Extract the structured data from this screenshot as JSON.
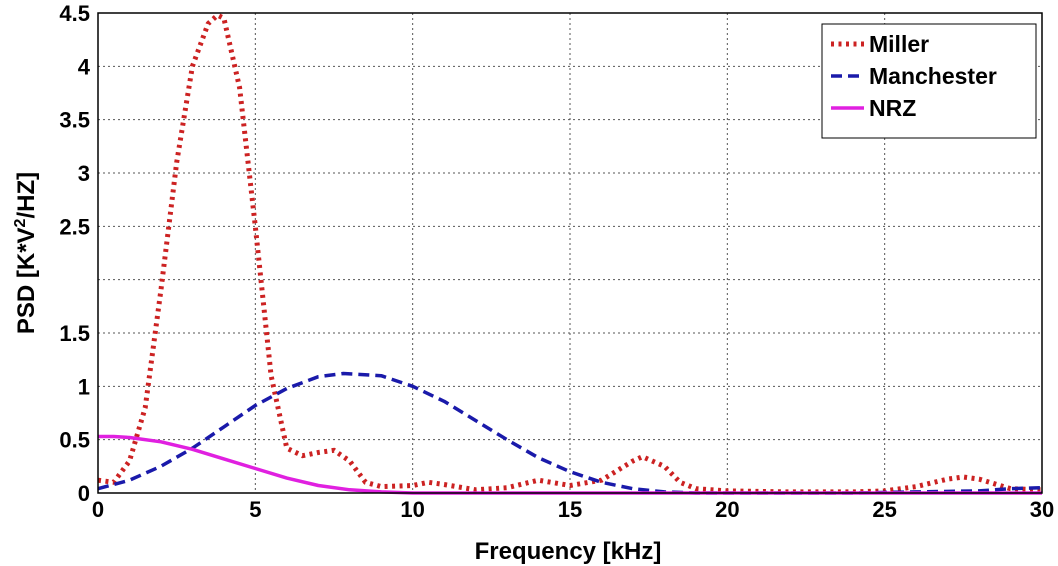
{
  "chart_data": {
    "type": "line",
    "title": "",
    "xlabel": "Frequency [kHz]",
    "ylabel": {
      "pre": "PSD [K*V",
      "sup": "2",
      "post": "/HZ]"
    },
    "xlim": [
      0,
      30
    ],
    "ylim": [
      0,
      4.5
    ],
    "x_ticks": [
      0,
      5,
      10,
      15,
      20,
      25,
      30
    ],
    "x_tick_labels": [
      "0",
      "5",
      "10",
      "15",
      "20",
      "25",
      "30"
    ],
    "y_ticks": [
      0,
      0.5,
      1,
      1.5,
      2,
      2.5,
      3,
      3.5,
      4,
      4.5
    ],
    "y_tick_labels": [
      "0",
      "0.5",
      "1",
      "1.5",
      "",
      "2.5",
      "3",
      "3.5",
      "4",
      "4.5"
    ],
    "grid": true,
    "legend_position": "top-right",
    "series": [
      {
        "name": "Miller",
        "color": "#cc2222",
        "style": "dotted",
        "x": [
          0,
          0.5,
          1,
          1.5,
          2,
          2.5,
          3,
          3.5,
          3.8,
          4,
          4.5,
          5,
          5.5,
          6,
          6.5,
          7,
          7.5,
          8,
          8.5,
          9,
          10,
          10.5,
          11,
          12,
          13,
          14,
          15,
          16,
          17,
          17.3,
          18,
          18.5,
          19,
          20,
          22,
          24,
          25,
          26,
          27,
          27.5,
          28,
          29,
          30
        ],
        "y": [
          0.12,
          0.1,
          0.3,
          0.8,
          1.9,
          3.1,
          4.0,
          4.4,
          4.48,
          4.45,
          3.8,
          2.5,
          1.1,
          0.42,
          0.35,
          0.38,
          0.4,
          0.3,
          0.1,
          0.06,
          0.07,
          0.1,
          0.08,
          0.03,
          0.05,
          0.12,
          0.07,
          0.12,
          0.3,
          0.34,
          0.25,
          0.1,
          0.04,
          0.02,
          0.01,
          0.01,
          0.02,
          0.06,
          0.13,
          0.15,
          0.13,
          0.04,
          0.03
        ]
      },
      {
        "name": "Manchester",
        "color": "#1a1aaa",
        "style": "dashed",
        "x": [
          0,
          1,
          2,
          3,
          4,
          5,
          6,
          7,
          7.8,
          9,
          10,
          11,
          12,
          13,
          14,
          15,
          16,
          17,
          18,
          19,
          20,
          22,
          24,
          26,
          28,
          29,
          30
        ],
        "y": [
          0.04,
          0.12,
          0.25,
          0.42,
          0.62,
          0.82,
          0.98,
          1.09,
          1.12,
          1.1,
          1.0,
          0.86,
          0.68,
          0.5,
          0.33,
          0.2,
          0.1,
          0.04,
          0.01,
          0.0,
          0.0,
          0.0,
          0.0,
          0.01,
          0.02,
          0.04,
          0.05
        ]
      },
      {
        "name": "NRZ",
        "color": "#e020e0",
        "style": "solid",
        "x": [
          0,
          0.5,
          1,
          2,
          3,
          4,
          5,
          6,
          7,
          8,
          9,
          10,
          12,
          15,
          20,
          25,
          30
        ],
        "y": [
          0.53,
          0.53,
          0.52,
          0.48,
          0.41,
          0.32,
          0.23,
          0.14,
          0.07,
          0.03,
          0.01,
          0.0,
          0.0,
          0.0,
          0.0,
          0.0,
          0.0
        ]
      }
    ]
  }
}
